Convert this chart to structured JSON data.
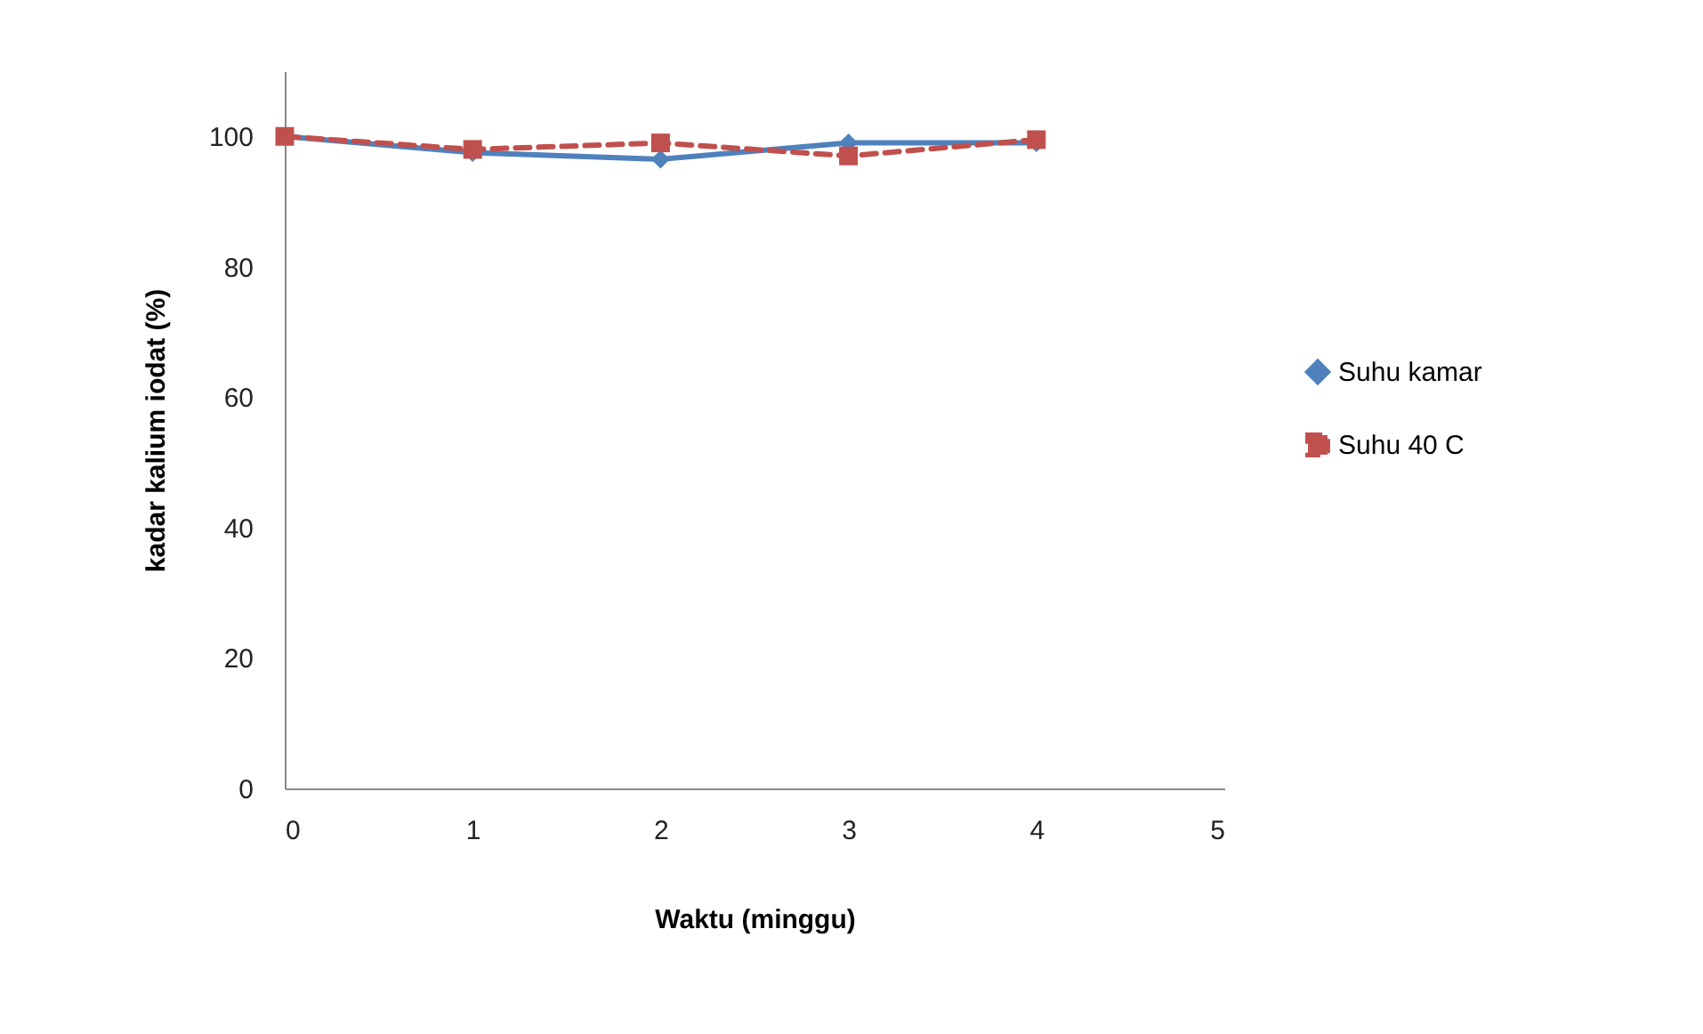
{
  "chart_data": {
    "type": "line",
    "xlabel": "Waktu (minggu)",
    "ylabel": "kadar kalium iodat (%)",
    "x": [
      0,
      1,
      2,
      3,
      4
    ],
    "series": [
      {
        "name": "Suhu kamar",
        "color": "#4f81bd",
        "values": [
          100,
          97.5,
          96.5,
          99,
          99
        ],
        "marker": "diamond",
        "line_style": "solid"
      },
      {
        "name": "Suhu 40 C",
        "color": "#c0504d",
        "values": [
          100,
          98,
          99,
          97,
          99.5
        ],
        "marker": "square",
        "line_style": "dashed"
      }
    ],
    "xlim": [
      0,
      5
    ],
    "xticks": [
      0,
      1,
      2,
      3,
      4,
      5
    ],
    "ylim": [
      0,
      110
    ],
    "yticks": [
      0,
      20,
      40,
      60,
      80,
      100
    ],
    "grid": false,
    "legend": "right"
  }
}
